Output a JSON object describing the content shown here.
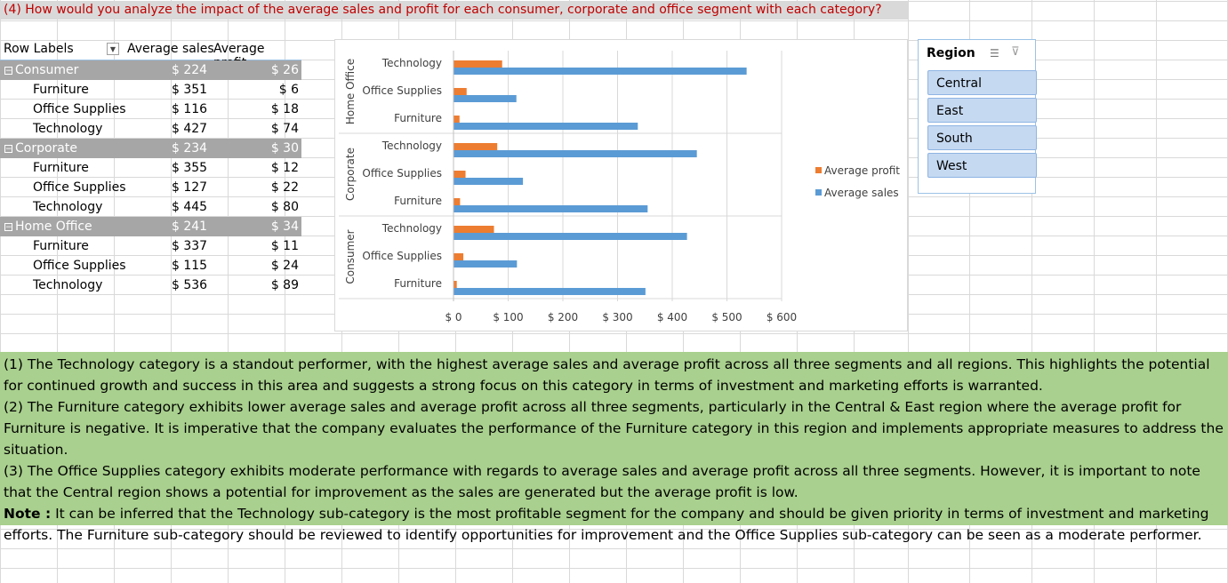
{
  "question": "(4) How would you analyze the impact of the average sales and profit for each consumer, corporate and office segment with each category?",
  "pivot": {
    "headers": {
      "row_labels": "Row Labels",
      "avg_sales": "Average sales",
      "avg_profit": "Average profit"
    },
    "rows": [
      {
        "label": "Consumer",
        "sales": "$ 224",
        "profit": "$ 26",
        "group": true
      },
      {
        "label": "Furniture",
        "sales": "$ 351",
        "profit": "$ 6"
      },
      {
        "label": "Office Supplies",
        "sales": "$ 116",
        "profit": "$ 18"
      },
      {
        "label": "Technology",
        "sales": "$ 427",
        "profit": "$ 74"
      },
      {
        "label": "Corporate",
        "sales": "$ 234",
        "profit": "$ 30",
        "group": true
      },
      {
        "label": "Furniture",
        "sales": "$ 355",
        "profit": "$ 12"
      },
      {
        "label": "Office Supplies",
        "sales": "$ 127",
        "profit": "$ 22"
      },
      {
        "label": "Technology",
        "sales": "$ 445",
        "profit": "$ 80"
      },
      {
        "label": "Home Office",
        "sales": "$ 241",
        "profit": "$ 34",
        "group": true
      },
      {
        "label": "Furniture",
        "sales": "$ 337",
        "profit": "$ 11"
      },
      {
        "label": "Office Supplies",
        "sales": "$ 115",
        "profit": "$ 24"
      },
      {
        "label": "Technology",
        "sales": "$ 536",
        "profit": "$ 89"
      }
    ]
  },
  "chart_data": {
    "type": "bar",
    "orientation": "horizontal",
    "groups": [
      "Home Office",
      "Corporate",
      "Consumer"
    ],
    "categories": [
      "Technology",
      "Office Supplies",
      "Furniture"
    ],
    "series": [
      {
        "name": "Average profit",
        "color": "#ed7d31",
        "values": [
          [
            89,
            24,
            11
          ],
          [
            80,
            22,
            12
          ],
          [
            74,
            18,
            6
          ]
        ]
      },
      {
        "name": "Average sales",
        "color": "#5b9bd5",
        "values": [
          [
            536,
            115,
            337
          ],
          [
            445,
            127,
            355
          ],
          [
            427,
            116,
            351
          ]
        ]
      }
    ],
    "xlim": [
      0,
      600
    ],
    "xticks": [
      0,
      100,
      200,
      300,
      400,
      500,
      600
    ],
    "xtick_labels": [
      "$ 0",
      "$ 100",
      "$ 200",
      "$ 300",
      "$ 400",
      "$ 500",
      "$ 600"
    ],
    "legend": "right",
    "grid": true
  },
  "slicer": {
    "title": "Region",
    "items": [
      "Central",
      "East",
      "South",
      "West"
    ]
  },
  "analysis": {
    "p1": "(1) The Technology category is a standout performer, with the highest average sales and average profit across all three segments and all regions. This highlights the potential for continued growth and success in this area and suggests a strong focus on this category in terms of investment and marketing efforts is warranted.",
    "p2": "(2) The Furniture category exhibits lower average sales and average profit across all three segments, particularly in the Central & East region where the average profit for Furniture is negative. It is imperative that the company evaluates the performance of the Furniture category in this region and implements appropriate measures to address the situation.",
    "p3": "(3) The Office Supplies category exhibits moderate performance with regards to average sales and average profit across all three segments. However, it is important to note that the Central region shows a potential for improvement as the sales are generated but the average profit is low.",
    "note_label": "Note :",
    "note_text": " It can be inferred that the Technology sub-category is the most profitable segment for the company and should be given priority in terms of investment and marketing efforts. The Furniture sub-category should be reviewed to identify opportunities for improvement and the Office Supplies sub-category can be seen as a moderate performer."
  }
}
